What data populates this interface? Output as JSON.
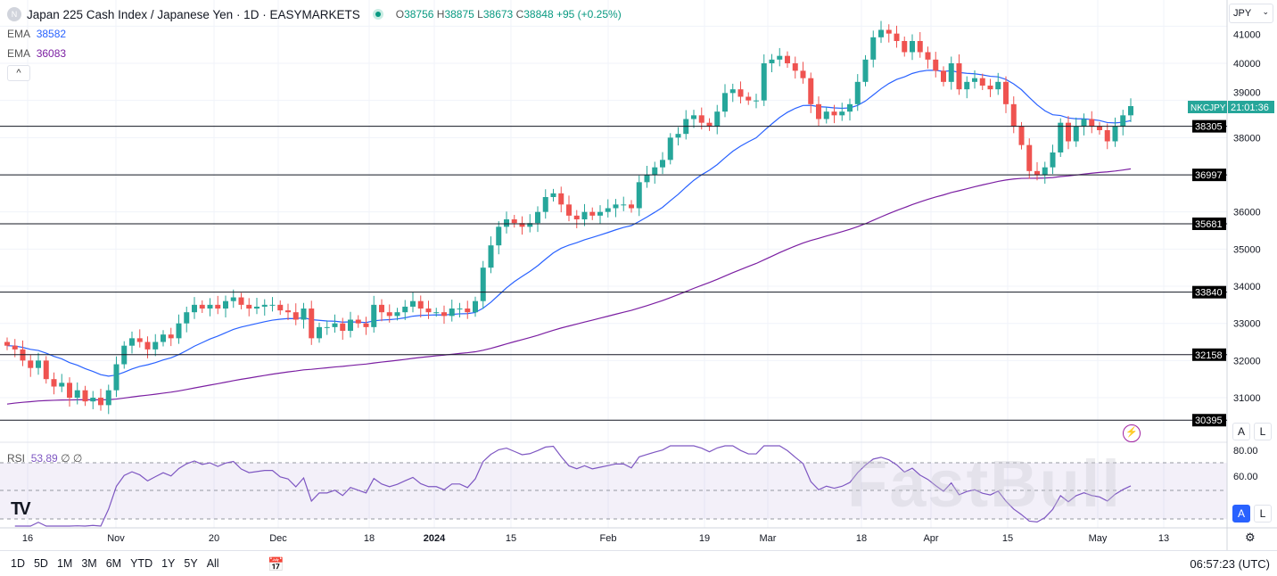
{
  "header": {
    "logo_letter": "N",
    "title": "Japan 225 Cash Index / Japanese Yen · 1D · EASYMARKETS",
    "ohlc": {
      "o_label": "O",
      "o": "38756",
      "h_label": "H",
      "h": "38875",
      "l_label": "L",
      "l": "38673",
      "c_label": "C",
      "c": "38848",
      "change": "+95 (+0.25%)"
    }
  },
  "indicators": [
    {
      "label": "EMA",
      "value": "38582",
      "color": "#2962ff"
    },
    {
      "label": "EMA",
      "value": "36083",
      "color": "#7b1fa2"
    }
  ],
  "collapse_icon": "^",
  "currency": {
    "value": "JPY",
    "icon": "⌄"
  },
  "price_axis": {
    "ticks": [
      "41000",
      "40000",
      "39000",
      "38000",
      "36000",
      "35000",
      "34000",
      "33000",
      "32000",
      "31000"
    ],
    "symbol_label": "NKCJPY",
    "countdown": "21:01:36",
    "levels": [
      "38305",
      "36997",
      "35681",
      "33840",
      "32158",
      "30395"
    ]
  },
  "rsi": {
    "label": "RSI",
    "value": "53.89",
    "extra": "∅ ∅",
    "ticks": [
      "80.00",
      "60.00"
    ]
  },
  "time_axis": [
    "16",
    "Nov",
    "20",
    "Dec",
    "18",
    "2024",
    "15",
    "Feb",
    "19",
    "Mar",
    "18",
    "Apr",
    "15",
    "May",
    "13"
  ],
  "scale_buttons": [
    "A",
    "L"
  ],
  "ranges": [
    "1D",
    "5D",
    "1M",
    "3M",
    "6M",
    "YTD",
    "1Y",
    "5Y",
    "All"
  ],
  "clock": "06:57:23 (UTC)",
  "watermark": "FastBull",
  "colors": {
    "up": "#26a69a",
    "down": "#ef5350",
    "ema_fast": "#2962ff",
    "ema_slow": "#7b1fa2",
    "rsi": "#7e57c2"
  },
  "chart_data": {
    "type": "candlestick",
    "price_range": [
      30000,
      41000
    ],
    "horizontal_levels": [
      38305,
      36997,
      35681,
      33840,
      32158,
      30395
    ],
    "closes": [
      32400,
      32300,
      32000,
      31800,
      32000,
      31500,
      31300,
      31400,
      31000,
      31200,
      30900,
      31000,
      30800,
      31200,
      31900,
      32400,
      32600,
      32500,
      32300,
      32500,
      32700,
      32600,
      33000,
      33300,
      33500,
      33400,
      33500,
      33400,
      33600,
      33700,
      33500,
      33400,
      33450,
      33500,
      33500,
      33350,
      33300,
      33100,
      33400,
      32600,
      32900,
      32900,
      33000,
      32800,
      33100,
      33000,
      32900,
      33500,
      33300,
      33200,
      33300,
      33450,
      33600,
      33400,
      33300,
      33300,
      33200,
      33400,
      33400,
      33300,
      33600,
      34500,
      35100,
      35600,
      35800,
      35700,
      35600,
      35700,
      36000,
      36400,
      36500,
      36200,
      35900,
      35800,
      36000,
      35900,
      36000,
      36100,
      36200,
      36200,
      36100,
      36800,
      37000,
      37200,
      37400,
      38000,
      38100,
      38500,
      38600,
      38400,
      38300,
      38700,
      39200,
      39300,
      39100,
      39000,
      39000,
      40000,
      40100,
      40200,
      40000,
      39800,
      39600,
      38900,
      38500,
      38700,
      38600,
      38700,
      38900,
      39500,
      40100,
      40700,
      40900,
      40800,
      40600,
      40300,
      40600,
      40300,
      40100,
      39800,
      39500,
      40000,
      39300,
      39500,
      39600,
      39400,
      39300,
      39500,
      38900,
      38300,
      37800,
      37100,
      37000,
      37200,
      37600,
      38400,
      37900,
      38300,
      38500,
      38300,
      38200,
      37900,
      38300,
      38600,
      38848
    ]
  }
}
